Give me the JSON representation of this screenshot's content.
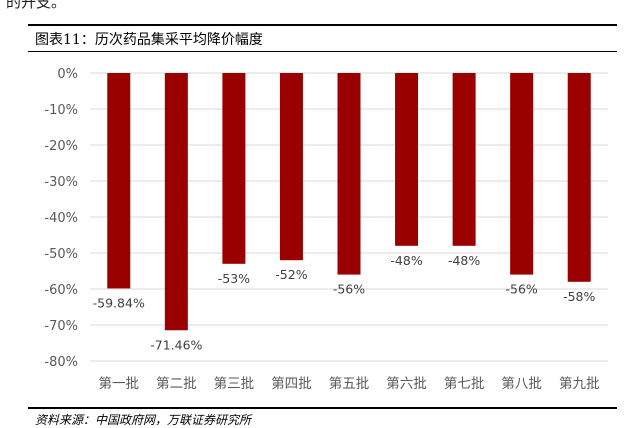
{
  "header_fragment": "的开支。",
  "figure_title": "图表11：历次药品集采平均降价幅度",
  "source_note": "资料来源：中国政府网，万联证券研究所",
  "colors": {
    "bar": "#9b0000",
    "grid": "#d9d9d9",
    "tick_text": "#595959",
    "label_text": "#404040"
  },
  "chart_data": {
    "type": "bar",
    "categories": [
      "第一批",
      "第二批",
      "第三批",
      "第四批",
      "第五批",
      "第六批",
      "第七批",
      "第八批",
      "第九批"
    ],
    "values": [
      -59.84,
      -71.46,
      -53,
      -52,
      -56,
      -48,
      -48,
      -56,
      -58
    ],
    "data_labels": [
      "-59.84%",
      "-71.46%",
      "-53%",
      "-52%",
      "-56%",
      "-48%",
      "-48%",
      "-56%",
      "-58%"
    ],
    "y_ticks": [
      0,
      -10,
      -20,
      -30,
      -40,
      -50,
      -60,
      -70,
      -80
    ],
    "y_tick_labels": [
      "0%",
      "-10%",
      "-20%",
      "-30%",
      "-40%",
      "-50%",
      "-60%",
      "-70%",
      "-80%"
    ],
    "ylim": [
      -80,
      0
    ],
    "grid": true,
    "title": "",
    "xlabel": "",
    "ylabel": ""
  }
}
